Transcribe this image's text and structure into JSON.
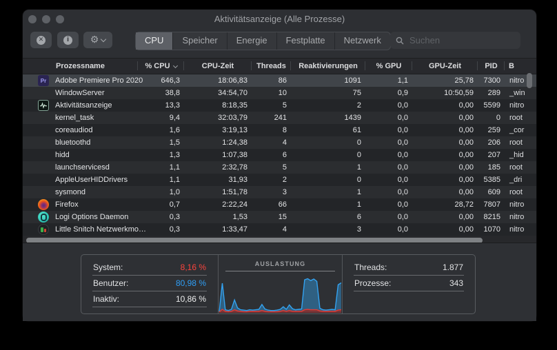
{
  "window": {
    "title": "Aktivitätsanzeige (Alle Prozesse)"
  },
  "toolbar": {
    "tabs": [
      "CPU",
      "Speicher",
      "Energie",
      "Festplatte",
      "Netzwerk"
    ],
    "selected_tab": "CPU",
    "search_placeholder": "Suchen"
  },
  "table": {
    "columns": [
      {
        "label": "Prozessname",
        "key": "name"
      },
      {
        "label": "% CPU",
        "key": "cpu",
        "sorted": "desc"
      },
      {
        "label": "CPU-Zeit",
        "key": "time"
      },
      {
        "label": "Threads",
        "key": "threads"
      },
      {
        "label": "Reaktivierungen",
        "key": "wake"
      },
      {
        "label": "% GPU",
        "key": "gpu"
      },
      {
        "label": "GPU-Zeit",
        "key": "gputime"
      },
      {
        "label": "PID",
        "key": "pid"
      },
      {
        "label": "B",
        "key": "user"
      }
    ],
    "rows": [
      {
        "icon": "premiere",
        "name": "Adobe Premiere Pro 2020",
        "cpu": "646,3",
        "time": "18:06,83",
        "threads": "86",
        "wake": "1091",
        "gpu": "1,1",
        "gputime": "25,78",
        "pid": "7300",
        "user": "nitro",
        "selected": true
      },
      {
        "icon": "none",
        "name": "WindowServer",
        "cpu": "38,8",
        "time": "34:54,70",
        "threads": "10",
        "wake": "75",
        "gpu": "0,9",
        "gputime": "10:50,59",
        "pid": "289",
        "user": "_win"
      },
      {
        "icon": "activity",
        "name": "Aktivitätsanzeige",
        "cpu": "13,3",
        "time": "8:18,35",
        "threads": "5",
        "wake": "2",
        "gpu": "0,0",
        "gputime": "0,00",
        "pid": "5599",
        "user": "nitro"
      },
      {
        "icon": "none",
        "name": "kernel_task",
        "cpu": "9,4",
        "time": "32:03,79",
        "threads": "241",
        "wake": "1439",
        "gpu": "0,0",
        "gputime": "0,00",
        "pid": "0",
        "user": "root"
      },
      {
        "icon": "none",
        "name": "coreaudiod",
        "cpu": "1,6",
        "time": "3:19,13",
        "threads": "8",
        "wake": "61",
        "gpu": "0,0",
        "gputime": "0,00",
        "pid": "259",
        "user": "_cor"
      },
      {
        "icon": "none",
        "name": "bluetoothd",
        "cpu": "1,5",
        "time": "1:24,38",
        "threads": "4",
        "wake": "0",
        "gpu": "0,0",
        "gputime": "0,00",
        "pid": "206",
        "user": "root"
      },
      {
        "icon": "none",
        "name": "hidd",
        "cpu": "1,3",
        "time": "1:07,38",
        "threads": "6",
        "wake": "0",
        "gpu": "0,0",
        "gputime": "0,00",
        "pid": "207",
        "user": "_hid"
      },
      {
        "icon": "none",
        "name": "launchservicesd",
        "cpu": "1,1",
        "time": "2:32,78",
        "threads": "5",
        "wake": "1",
        "gpu": "0,0",
        "gputime": "0,00",
        "pid": "185",
        "user": "root"
      },
      {
        "icon": "none",
        "name": "AppleUserHIDDrivers",
        "cpu": "1,1",
        "time": "31,93",
        "threads": "2",
        "wake": "0",
        "gpu": "0,0",
        "gputime": "0,00",
        "pid": "5385",
        "user": "_dri"
      },
      {
        "icon": "none",
        "name": "sysmond",
        "cpu": "1,0",
        "time": "1:51,78",
        "threads": "3",
        "wake": "1",
        "gpu": "0,0",
        "gputime": "0,00",
        "pid": "609",
        "user": "root"
      },
      {
        "icon": "firefox",
        "name": "Firefox",
        "cpu": "0,7",
        "time": "2:22,24",
        "threads": "66",
        "wake": "1",
        "gpu": "0,0",
        "gputime": "28,72",
        "pid": "7807",
        "user": "nitro"
      },
      {
        "icon": "logi",
        "name": "Logi Options Daemon",
        "cpu": "0,3",
        "time": "1,53",
        "threads": "15",
        "wake": "6",
        "gpu": "0,0",
        "gputime": "0,00",
        "pid": "8215",
        "user": "nitro"
      },
      {
        "icon": "littlesnitch",
        "name": "Little Snitch Netzwerkmo…",
        "cpu": "0,3",
        "time": "1:33,47",
        "threads": "4",
        "wake": "3",
        "gpu": "0,0",
        "gputime": "0,00",
        "pid": "1070",
        "user": "nitro"
      }
    ]
  },
  "footer": {
    "stats_left": [
      {
        "label": "System:",
        "value": "8,16 %",
        "color": "#fb443d"
      },
      {
        "label": "Benutzer:",
        "value": "80,98 %",
        "color": "#2f9ef5"
      },
      {
        "label": "Inaktiv:",
        "value": "10,86 %",
        "color": "#eceded"
      }
    ],
    "stats_right": [
      {
        "label": "Threads:",
        "value": "1.877"
      },
      {
        "label": "Prozesse:",
        "value": "343"
      }
    ]
  },
  "chart_data": {
    "type": "area",
    "title": "AUSLASTUNG",
    "ylim": [
      0,
      100
    ],
    "unit": "% CPU",
    "legend_position": "none",
    "series": [
      {
        "name": "Benutzer",
        "color": "#33a3f2",
        "fill": "#2f6d96",
        "values": [
          3,
          78,
          8,
          6,
          9,
          34,
          13,
          8,
          7,
          6,
          8,
          7,
          8,
          9,
          22,
          10,
          7,
          6,
          6,
          7,
          9,
          16,
          9,
          21,
          11,
          8,
          9,
          10,
          87,
          90,
          85,
          89,
          83,
          12,
          8,
          7,
          8,
          9,
          8,
          74,
          79
        ]
      },
      {
        "name": "System",
        "color": "#e23c35",
        "fill": "#8c2a25",
        "values": [
          2,
          9,
          4,
          3,
          4,
          8,
          5,
          4,
          3,
          3,
          4,
          4,
          4,
          4,
          6,
          4,
          3,
          3,
          3,
          3,
          4,
          6,
          4,
          6,
          4,
          4,
          4,
          4,
          8,
          9,
          8,
          8,
          8,
          5,
          4,
          4,
          4,
          4,
          4,
          7,
          8
        ]
      }
    ]
  }
}
